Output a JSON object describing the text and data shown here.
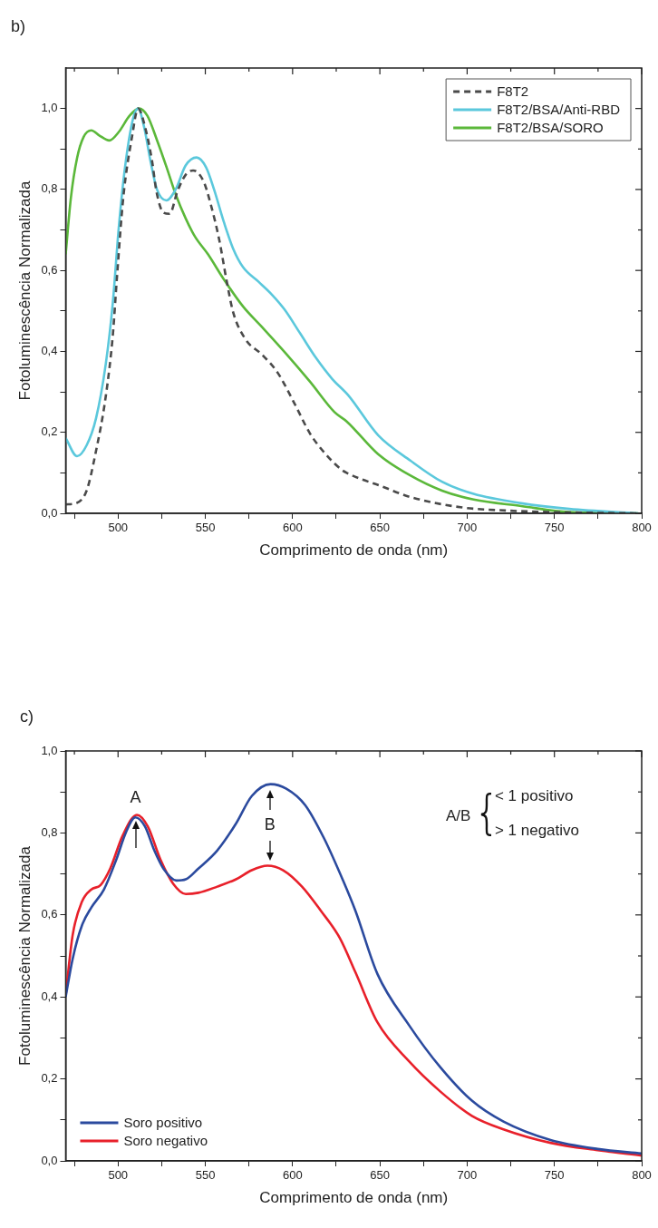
{
  "chart_data": [
    {
      "type": "line",
      "title": "b)",
      "xlabel": "Comprimento de onda (nm)",
      "ylabel": "Fotoluminescência Normalizada",
      "xlim": [
        470,
        800
      ],
      "ylim": [
        0,
        1.1
      ],
      "xticks": [
        {
          "value": 475,
          "label": null
        },
        500,
        {
          "value": 525,
          "label": null
        },
        550,
        {
          "value": 575,
          "label": null
        },
        600,
        {
          "value": 625,
          "label": null
        },
        650,
        {
          "value": 675,
          "label": null
        },
        700,
        {
          "value": 725,
          "label": null
        },
        750,
        {
          "value": 775,
          "label": null
        },
        800
      ],
      "yticks": [
        {
          "value": 0,
          "label": "0,0"
        },
        {
          "value": 0.1,
          "label": null
        },
        {
          "value": 0.2,
          "label": "0,2"
        },
        {
          "value": 0.3,
          "label": null
        },
        {
          "value": 0.4,
          "label": "0,4"
        },
        {
          "value": 0.5,
          "label": null
        },
        {
          "value": 0.6,
          "label": "0,6"
        },
        {
          "value": 0.7,
          "label": null
        },
        {
          "value": 0.8,
          "label": "0,8"
        },
        {
          "value": 0.9,
          "label": null
        },
        {
          "value": 1.0,
          "label": "1,0"
        }
      ],
      "legend": "top right",
      "marker": "none",
      "series": [
        {
          "name": "F8T2",
          "color": "#4a4a4a",
          "line_style": "dashed",
          "x": [
            470,
            476,
            482,
            487,
            493,
            497,
            499.5,
            503,
            508,
            511.5,
            516,
            519.5,
            522,
            526,
            529.6,
            534,
            538.7,
            543,
            549,
            553,
            558,
            562.4,
            566,
            573,
            582.5,
            591.5,
            601,
            610,
            619,
            628,
            631,
            639,
            649,
            667.6,
            698,
            722,
            749,
            798
          ],
          "values": [
            0.022,
            0.025,
            0.056,
            0.146,
            0.29,
            0.44,
            0.59,
            0.78,
            0.93,
            1.0,
            0.945,
            0.87,
            0.795,
            0.743,
            0.74,
            0.795,
            0.836,
            0.847,
            0.82,
            0.765,
            0.675,
            0.57,
            0.496,
            0.43,
            0.392,
            0.347,
            0.272,
            0.197,
            0.146,
            0.108,
            0.1,
            0.085,
            0.07,
            0.04,
            0.014,
            0.007,
            0.003,
            0.0
          ]
        },
        {
          "name": "F8T2/BSA/Anti-RBD",
          "color": "#5bc8dc",
          "x": [
            470,
            476.5,
            482,
            487.4,
            493,
            497,
            500.4,
            504,
            508.6,
            511.5,
            515,
            518.6,
            522.3,
            527.7,
            533,
            538.7,
            545,
            550.4,
            555,
            560.6,
            566,
            571.6,
            580.5,
            588,
            595.3,
            604.4,
            613.4,
            622.7,
            631.8,
            649,
            667.6,
            685.6,
            703.7,
            731,
            758.5,
            798
          ],
          "values": [
            0.186,
            0.141,
            0.168,
            0.235,
            0.37,
            0.52,
            0.705,
            0.855,
            0.975,
            1.0,
            0.953,
            0.87,
            0.8,
            0.773,
            0.8,
            0.859,
            0.879,
            0.855,
            0.8,
            0.72,
            0.653,
            0.608,
            0.572,
            0.541,
            0.504,
            0.444,
            0.384,
            0.332,
            0.292,
            0.193,
            0.13,
            0.078,
            0.048,
            0.025,
            0.011,
            0.0
          ]
        },
        {
          "name": "F8T2/BSA/SORO",
          "color": "#5bb83a",
          "x": [
            470,
            473,
            476.5,
            480.3,
            484.7,
            489.4,
            495,
            500.4,
            506.6,
            512,
            516.8,
            522.3,
            527.8,
            533,
            538.7,
            544,
            551.5,
            560.6,
            571.6,
            582.5,
            595.3,
            610,
            624,
            631,
            649,
            667.6,
            685.6,
            703.7,
            731,
            758.5,
            798
          ],
          "values": [
            0.64,
            0.78,
            0.877,
            0.93,
            0.946,
            0.933,
            0.921,
            0.942,
            0.982,
            1.0,
            0.982,
            0.922,
            0.855,
            0.788,
            0.729,
            0.684,
            0.64,
            0.578,
            0.511,
            0.46,
            0.399,
            0.325,
            0.25,
            0.227,
            0.146,
            0.093,
            0.056,
            0.034,
            0.018,
            0.003,
            0.0
          ]
        }
      ]
    },
    {
      "type": "line",
      "title": "c)",
      "xlabel": "Comprimento de onda (nm)",
      "ylabel": "Fotoluminescência Normalizada",
      "xlim": [
        470,
        800
      ],
      "ylim": [
        0,
        1.0
      ],
      "xticks": [
        {
          "value": 475,
          "label": null
        },
        500,
        {
          "value": 525,
          "label": null
        },
        550,
        {
          "value": 575,
          "label": null
        },
        600,
        {
          "value": 625,
          "label": null
        },
        650,
        {
          "value": 675,
          "label": null
        },
        700,
        {
          "value": 725,
          "label": null
        },
        750,
        {
          "value": 775,
          "label": null
        },
        800
      ],
      "yticks": [
        {
          "value": 0,
          "label": "0,0"
        },
        {
          "value": 0.1,
          "label": null
        },
        {
          "value": 0.2,
          "label": "0,2"
        },
        {
          "value": 0.3,
          "label": null
        },
        {
          "value": 0.4,
          "label": "0,4"
        },
        {
          "value": 0.5,
          "label": null
        },
        {
          "value": 0.6,
          "label": "0,6"
        },
        {
          "value": 0.7,
          "label": null
        },
        {
          "value": 0.8,
          "label": "0,8"
        },
        {
          "value": 0.9,
          "label": null
        },
        {
          "value": 1.0,
          "label": "1,0"
        }
      ],
      "legend": "bottom left",
      "marker": "none",
      "annotations": [
        {
          "text": "A",
          "x": 510,
          "y": 0.844
        },
        {
          "text": "B",
          "x": 587,
          "y": 0.919
        },
        "A/B",
        "< 1 positivo",
        "> 1 negativo"
      ],
      "series": [
        {
          "name": "Soro positivo",
          "color": "#2b4a9e",
          "x": [
            470,
            474,
            479.3,
            484.7,
            491.9,
            499,
            504.5,
            509.9,
            515.4,
            520.8,
            526,
            533.4,
            538.8,
            546,
            556.8,
            567.6,
            576.6,
            587.4,
            596.4,
            607.2,
            618,
            628.9,
            636,
            648.6,
            666.7,
            684.7,
            702.7,
            720.8,
            747.8,
            774.8,
            800
          ],
          "values": [
            0.4,
            0.493,
            0.574,
            0.618,
            0.662,
            0.735,
            0.801,
            0.838,
            0.816,
            0.757,
            0.713,
            0.684,
            0.687,
            0.713,
            0.757,
            0.823,
            0.89,
            0.919,
            0.908,
            0.868,
            0.787,
            0.684,
            0.61,
            0.456,
            0.331,
            0.228,
            0.147,
            0.096,
            0.051,
            0.029,
            0.018
          ]
        },
        {
          "name": "Soro negativo",
          "color": "#e8202a",
          "x": [
            470,
            474,
            479.3,
            484.7,
            490,
            495.5,
            502.7,
            510.8,
            517,
            524.3,
            531.6,
            538.8,
            546,
            556.8,
            567.6,
            576.6,
            585.6,
            594.6,
            605.4,
            616.2,
            627,
            636,
            648.6,
            666.7,
            684.7,
            702.7,
            720.8,
            747.8,
            774.8,
            800
          ],
          "values": [
            0.404,
            0.551,
            0.632,
            0.662,
            0.673,
            0.713,
            0.794,
            0.844,
            0.816,
            0.735,
            0.676,
            0.651,
            0.654,
            0.669,
            0.687,
            0.709,
            0.72,
            0.709,
            0.669,
            0.61,
            0.544,
            0.46,
            0.338,
            0.243,
            0.169,
            0.11,
            0.077,
            0.044,
            0.026,
            0.013
          ]
        }
      ]
    }
  ]
}
